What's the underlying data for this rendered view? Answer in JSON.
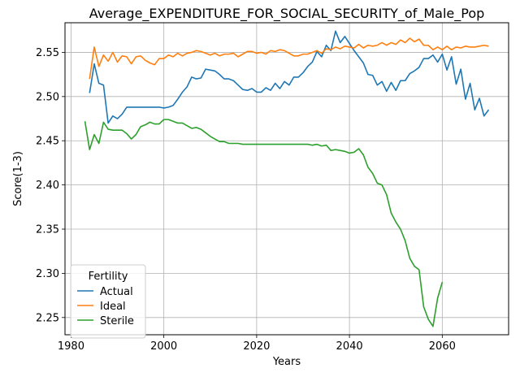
{
  "chart_data": {
    "type": "line",
    "title": "Average_EXPENDITURE_FOR_SOCIAL_SECURITY_of_Male_Pop",
    "xlabel": "Years",
    "ylabel": "Score(1-3)",
    "xlim": [
      1978.7,
      2074.3
    ],
    "ylim": [
      2.2305,
      2.5835
    ],
    "xticks": [
      1980,
      2000,
      2020,
      2040,
      2060
    ],
    "yticks": [
      2.25,
      2.3,
      2.35,
      2.4,
      2.45,
      2.5,
      2.55
    ],
    "ytick_labels": [
      "2.25",
      "2.30",
      "2.35",
      "2.40",
      "2.45",
      "2.50",
      "2.55"
    ],
    "grid": true,
    "legend": {
      "title": "Fertility",
      "position": "lower-left"
    },
    "series": [
      {
        "name": "Actual",
        "color": "#1f77b4",
        "x": [
          1984,
          1985,
          1986,
          1987,
          1988,
          1989,
          1990,
          1991,
          1992,
          1993,
          1994,
          1995,
          1996,
          1997,
          1998,
          1999,
          2000,
          2001,
          2002,
          2003,
          2004,
          2005,
          2006,
          2007,
          2008,
          2009,
          2010,
          2011,
          2012,
          2013,
          2014,
          2015,
          2016,
          2017,
          2018,
          2019,
          2020,
          2021,
          2022,
          2023,
          2024,
          2025,
          2026,
          2027,
          2028,
          2029,
          2030,
          2031,
          2032,
          2033,
          2034,
          2035,
          2036,
          2037,
          2038,
          2039,
          2040,
          2041,
          2042,
          2043,
          2044,
          2045,
          2046,
          2047,
          2048,
          2049,
          2050,
          2051,
          2052,
          2053,
          2054,
          2055,
          2056,
          2057,
          2058,
          2059,
          2060,
          2061,
          2062,
          2063,
          2064,
          2065,
          2066,
          2067,
          2068,
          2069,
          2070
        ],
        "values": [
          2.504,
          2.537,
          2.515,
          2.513,
          2.47,
          2.478,
          2.475,
          2.48,
          2.488,
          2.488,
          2.488,
          2.488,
          2.488,
          2.488,
          2.488,
          2.488,
          2.487,
          2.488,
          2.49,
          2.497,
          2.505,
          2.511,
          2.522,
          2.52,
          2.521,
          2.531,
          2.53,
          2.529,
          2.525,
          2.52,
          2.52,
          2.518,
          2.513,
          2.508,
          2.507,
          2.509,
          2.505,
          2.505,
          2.51,
          2.507,
          2.515,
          2.509,
          2.517,
          2.513,
          2.522,
          2.522,
          2.527,
          2.534,
          2.539,
          2.551,
          2.545,
          2.558,
          2.552,
          2.574,
          2.561,
          2.568,
          2.56,
          2.552,
          2.545,
          2.538,
          2.525,
          2.524,
          2.513,
          2.517,
          2.506,
          2.516,
          2.507,
          2.518,
          2.518,
          2.526,
          2.529,
          2.533,
          2.543,
          2.543,
          2.547,
          2.539,
          2.548,
          2.53,
          2.545,
          2.514,
          2.531,
          2.497,
          2.515,
          2.485,
          2.498,
          2.478,
          2.485
        ]
      },
      {
        "name": "Ideal",
        "color": "#ff7f0e",
        "x": [
          1984,
          1985,
          1986,
          1987,
          1988,
          1989,
          1990,
          1991,
          1992,
          1993,
          1994,
          1995,
          1996,
          1997,
          1998,
          1999,
          2000,
          2001,
          2002,
          2003,
          2004,
          2005,
          2006,
          2007,
          2008,
          2009,
          2010,
          2011,
          2012,
          2013,
          2014,
          2015,
          2016,
          2017,
          2018,
          2019,
          2020,
          2021,
          2022,
          2023,
          2024,
          2025,
          2026,
          2027,
          2028,
          2029,
          2030,
          2031,
          2032,
          2033,
          2034,
          2035,
          2036,
          2037,
          2038,
          2039,
          2040,
          2041,
          2042,
          2043,
          2044,
          2045,
          2046,
          2047,
          2048,
          2049,
          2050,
          2051,
          2052,
          2053,
          2054,
          2055,
          2056,
          2057,
          2058,
          2059,
          2060,
          2061,
          2062,
          2063,
          2064,
          2065,
          2066,
          2067,
          2068,
          2069,
          2070
        ],
        "values": [
          2.52,
          2.556,
          2.534,
          2.547,
          2.54,
          2.55,
          2.539,
          2.546,
          2.545,
          2.537,
          2.545,
          2.546,
          2.541,
          2.538,
          2.536,
          2.543,
          2.543,
          2.547,
          2.545,
          2.549,
          2.546,
          2.549,
          2.55,
          2.552,
          2.551,
          2.549,
          2.547,
          2.549,
          2.546,
          2.548,
          2.548,
          2.549,
          2.545,
          2.548,
          2.551,
          2.551,
          2.549,
          2.55,
          2.548,
          2.552,
          2.551,
          2.553,
          2.552,
          2.549,
          2.546,
          2.546,
          2.548,
          2.548,
          2.55,
          2.552,
          2.549,
          2.554,
          2.553,
          2.556,
          2.554,
          2.557,
          2.556,
          2.555,
          2.559,
          2.555,
          2.558,
          2.557,
          2.558,
          2.561,
          2.558,
          2.561,
          2.559,
          2.564,
          2.561,
          2.566,
          2.562,
          2.565,
          2.558,
          2.558,
          2.553,
          2.556,
          2.553,
          2.557,
          2.553,
          2.556,
          2.555,
          2.557,
          2.556,
          2.556,
          2.557,
          2.558,
          2.557
        ]
      },
      {
        "name": "Sterile",
        "color": "#2ca02c",
        "x": [
          1983,
          1984,
          1985,
          1986,
          1987,
          1988,
          1989,
          1990,
          1991,
          1992,
          1993,
          1994,
          1995,
          1996,
          1997,
          1998,
          1999,
          2000,
          2001,
          2002,
          2003,
          2004,
          2005,
          2006,
          2007,
          2008,
          2009,
          2010,
          2011,
          2012,
          2013,
          2014,
          2015,
          2016,
          2017,
          2018,
          2019,
          2020,
          2021,
          2022,
          2023,
          2024,
          2025,
          2026,
          2027,
          2028,
          2029,
          2030,
          2031,
          2032,
          2033,
          2034,
          2035,
          2036,
          2037,
          2038,
          2039,
          2040,
          2041,
          2042,
          2043,
          2044,
          2045,
          2046,
          2047,
          2048,
          2049,
          2050,
          2051,
          2052,
          2053,
          2054,
          2055,
          2056,
          2057,
          2058,
          2059,
          2060
        ],
        "values": [
          2.472,
          2.44,
          2.457,
          2.447,
          2.471,
          2.463,
          2.462,
          2.462,
          2.462,
          2.458,
          2.452,
          2.457,
          2.466,
          2.468,
          2.471,
          2.469,
          2.469,
          2.474,
          2.474,
          2.472,
          2.47,
          2.47,
          2.467,
          2.464,
          2.465,
          2.463,
          2.459,
          2.455,
          2.452,
          2.449,
          2.449,
          2.447,
          2.447,
          2.447,
          2.446,
          2.446,
          2.446,
          2.446,
          2.446,
          2.446,
          2.446,
          2.446,
          2.446,
          2.446,
          2.446,
          2.446,
          2.446,
          2.446,
          2.446,
          2.445,
          2.446,
          2.444,
          2.445,
          2.439,
          2.44,
          2.439,
          2.438,
          2.436,
          2.437,
          2.441,
          2.434,
          2.42,
          2.413,
          2.402,
          2.4,
          2.389,
          2.368,
          2.358,
          2.35,
          2.337,
          2.317,
          2.308,
          2.304,
          2.262,
          2.248,
          2.24,
          2.272,
          2.29
        ]
      }
    ]
  }
}
